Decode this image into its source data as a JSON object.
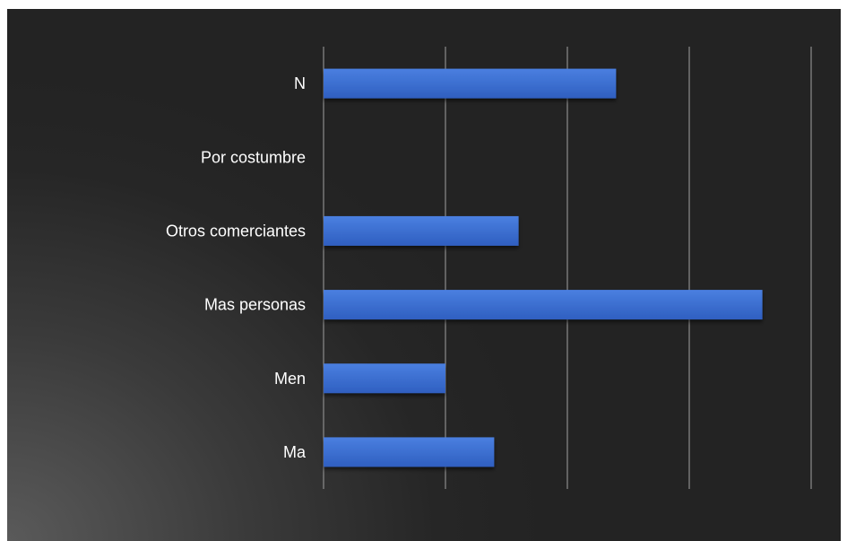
{
  "chart_data": {
    "type": "bar",
    "orientation": "horizontal",
    "categories": [
      "Ma",
      "Men",
      "Mas personas",
      "Otros comerciantes",
      "Por costumbre",
      "N"
    ],
    "values": [
      1.4,
      1.0,
      3.6,
      1.6,
      0,
      2.4
    ],
    "xlim": [
      0,
      4
    ],
    "grid": true,
    "bar_color": "#3d6fd4",
    "background": "#262626",
    "text_color": "#ffffff"
  }
}
